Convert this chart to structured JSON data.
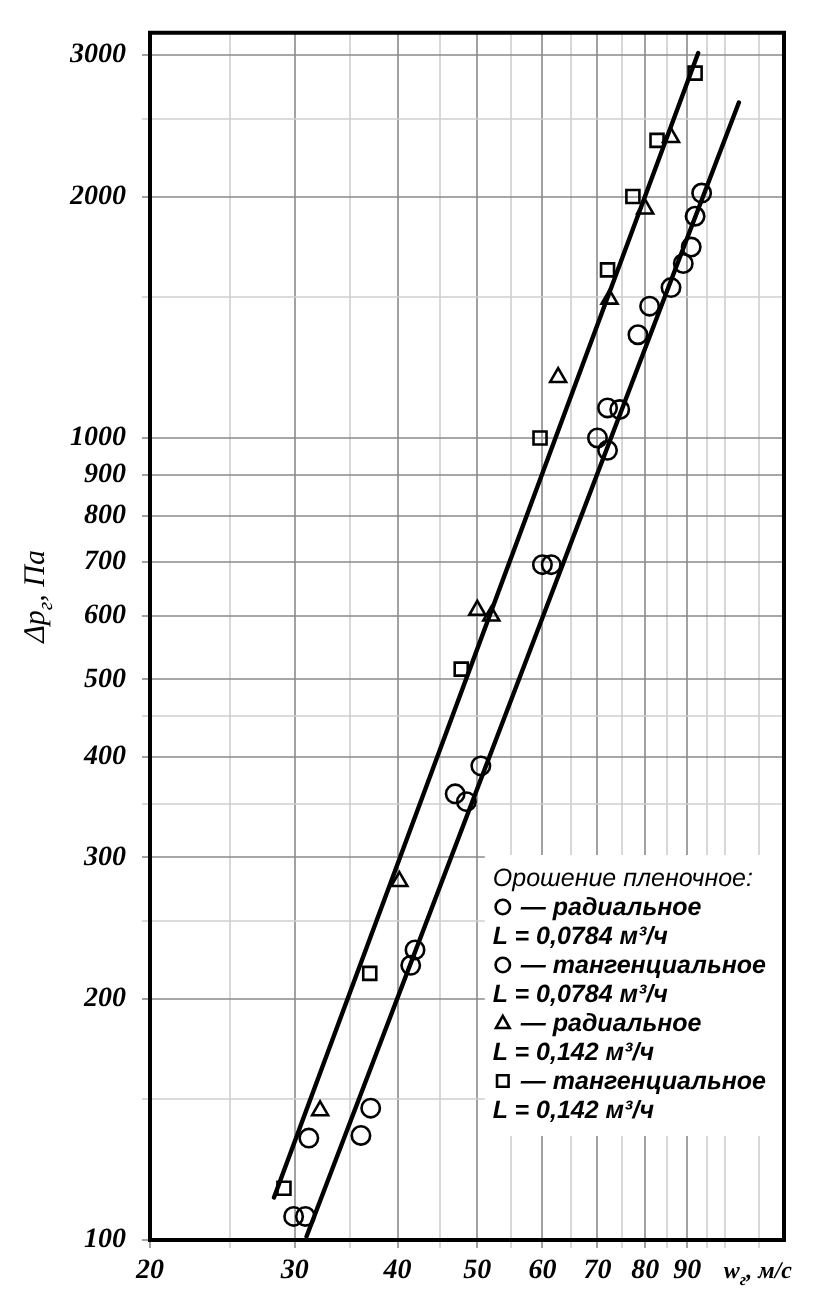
{
  "chart_data": {
    "type": "scatter",
    "xlabel": "w$_{г}$, м/с",
    "ylabel": "Δp$_{г}$, Па",
    "legend_title": "Орошение пленочное:",
    "log": "xy",
    "grid": true,
    "legend": "bottom right",
    "xlim": [
      20,
      118
    ],
    "ylim": [
      100,
      3200
    ],
    "xticks": [
      20,
      {
        "value": 25,
        "label": null
      },
      30,
      {
        "value": 35,
        "label": null
      },
      40,
      {
        "value": 45,
        "label": null
      },
      50,
      {
        "value": 55,
        "label": null
      },
      60,
      {
        "value": 65,
        "label": null
      },
      70,
      {
        "value": 75,
        "label": null
      },
      80,
      {
        "value": 85,
        "label": null
      },
      90,
      {
        "value": 95,
        "label": null
      },
      {
        "value": 100,
        "label": null
      },
      {
        "value": 110,
        "label": null
      }
    ],
    "yticks": [
      100,
      {
        "value": 150,
        "label": null
      },
      200,
      {
        "value": 250,
        "label": null
      },
      300,
      {
        "value": 350,
        "label": null
      },
      400,
      {
        "value": 450,
        "label": null
      },
      500,
      600,
      700,
      800,
      900,
      1000,
      {
        "value": 1500,
        "label": null
      },
      2000,
      {
        "value": 2500,
        "label": null
      },
      3000
    ],
    "series": [
      {
        "name": "— радиальное\nL = 0,0784 м³/ч",
        "marker": "circle",
        "color": "#000000",
        "x": [
          31.2,
          41.5,
          42,
          50.5,
          72,
          74.5,
          81,
          89,
          92
        ],
        "values": [
          134,
          220,
          230,
          390,
          1090,
          1085,
          1460,
          1650,
          1890
        ]
      },
      {
        "name": "— тангенциальное\nL = 0,0784 м³/ч",
        "marker": "circle",
        "color": "#000000",
        "x": [
          29.9,
          30.9,
          36.1,
          37.1,
          47,
          48.5,
          60,
          61.5,
          70,
          72,
          78.4,
          86,
          91,
          93.7
        ],
        "values": [
          107,
          107,
          135,
          146,
          360,
          352,
          695,
          695,
          1000,
          965,
          1345,
          1540,
          1730,
          2020
        ]
      },
      {
        "name": "— радиальное\nL = 0,142 м³/ч",
        "marker": "triangle",
        "color": "#000000",
        "x": [
          32.2,
          40.2,
          50,
          52,
          62.7,
          72.4,
          80,
          86
        ],
        "values": [
          145,
          280,
          610,
          600,
          1190,
          1490,
          1930,
          2370
        ]
      },
      {
        "name": "— тангенциальное\nL = 0,142 м³/ч",
        "marker": "square",
        "color": "#000000",
        "x": [
          29.1,
          37,
          47.8,
          59.6,
          72,
          77.3,
          82.7,
          92
        ],
        "values": [
          116,
          215,
          515,
          1000,
          1620,
          2000,
          2350,
          2850
        ]
      },
      {
        "type": "line",
        "marker": "none",
        "line_style": "solid",
        "color": "#000000",
        "x": [
          28.3,
          92.8
        ],
        "values": [
          113,
          3020
        ]
      },
      {
        "type": "line",
        "marker": "none",
        "line_style": "solid",
        "color": "#000000",
        "x": [
          31,
          104
        ],
        "values": [
          101,
          2620
        ]
      }
    ]
  }
}
